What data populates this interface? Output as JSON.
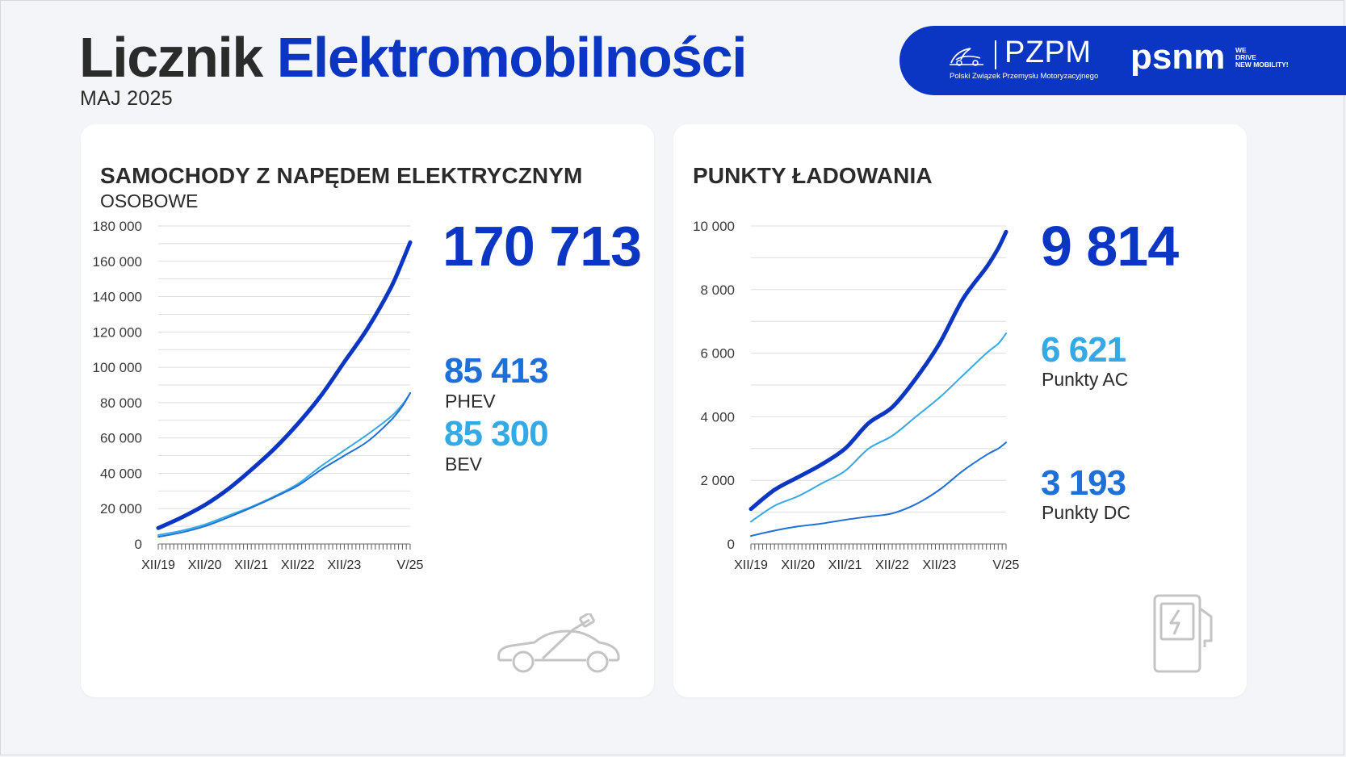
{
  "header": {
    "title_part1": "Licznik",
    "title_part2": "Elektromobilności",
    "subtitle": "MAJ 2025"
  },
  "logos": {
    "pzpm_name": "PZPM",
    "pzpm_full": "Polski Związek Przemysłu Motoryzacyjnego",
    "psnm_name": "psnm",
    "psnm_tagline_1": "WE",
    "psnm_tagline_2": "DRIVE",
    "psnm_tagline_3": "NEW MOBILITY!"
  },
  "colors": {
    "navy": "#0b36c4",
    "mid_blue": "#1e6fd9",
    "light_blue": "#35a9e6",
    "grid": "#d9d9d9"
  },
  "icons": {
    "left": "electric-car-icon",
    "right": "charging-station-icon"
  },
  "chart_data": [
    {
      "type": "line",
      "title": "SAMOCHODY Z NAPĘDEM ELEKTRYCZNYM",
      "subtitle": "OSOBOWE",
      "ylim": [
        0,
        180000
      ],
      "y_ticks": [
        "0",
        "20 000",
        "40 000",
        "60 000",
        "80 000",
        "100 000",
        "120 000",
        "140 000",
        "160 000",
        "180 000"
      ],
      "y_tick_values": [
        0,
        20000,
        40000,
        60000,
        80000,
        100000,
        120000,
        140000,
        160000,
        180000
      ],
      "grid": true,
      "x_tick_labels": [
        "XII/19",
        "XII/20",
        "XII/21",
        "XII/22",
        "XII/23",
        "V/25"
      ],
      "x_tick_months": [
        0,
        12,
        24,
        36,
        48,
        65
      ],
      "x_month_count": 65,
      "x": [
        0,
        6,
        12,
        18,
        24,
        30,
        36,
        42,
        48,
        54,
        60,
        63,
        65
      ],
      "series": [
        {
          "name": "",
          "total_label": "170 713",
          "color": "#0b36c4",
          "values": [
            9000,
            15000,
            22000,
            31000,
            42000,
            54000,
            68000,
            84000,
            103000,
            122000,
            145000,
            160000,
            170713
          ]
        },
        {
          "name": "PHEV",
          "total_label": "85 413",
          "color": "#1e6fd9",
          "values": [
            4000,
            6500,
            10000,
            15000,
            20500,
            26500,
            33000,
            42000,
            50000,
            58000,
            70000,
            78000,
            85413
          ]
        },
        {
          "name": "BEV",
          "total_label": "85 300",
          "color": "#35a9e6",
          "values": [
            5000,
            7500,
            11000,
            16000,
            21000,
            27000,
            34000,
            44000,
            53000,
            62000,
            72000,
            79000,
            85300
          ]
        }
      ]
    },
    {
      "type": "line",
      "title": "PUNKTY ŁADOWANIA",
      "ylim": [
        0,
        10000
      ],
      "y_ticks": [
        "0",
        "2 000",
        "4 000",
        "6 000",
        "8 000",
        "10 000"
      ],
      "y_tick_values": [
        0,
        2000,
        4000,
        6000,
        8000,
        10000
      ],
      "grid": true,
      "x_tick_labels": [
        "XII/19",
        "XII/20",
        "XII/21",
        "XII/22",
        "XII/23",
        "V/25"
      ],
      "x_tick_months": [
        0,
        12,
        24,
        36,
        48,
        65
      ],
      "x_month_count": 65,
      "x": [
        0,
        6,
        12,
        18,
        24,
        30,
        36,
        42,
        48,
        54,
        60,
        63,
        65
      ],
      "series": [
        {
          "name": "",
          "total_label": "9 814",
          "color": "#0b36c4",
          "values": [
            1100,
            1700,
            2100,
            2500,
            3000,
            3800,
            4300,
            5200,
            6300,
            7700,
            8700,
            9300,
            9814
          ]
        },
        {
          "name": "Punkty AC",
          "total_label": "6 621",
          "color": "#35a9e6",
          "values": [
            700,
            1200,
            1500,
            1900,
            2300,
            3000,
            3400,
            4000,
            4600,
            5300,
            6000,
            6300,
            6621
          ]
        },
        {
          "name": "Punkty DC",
          "total_label": "3 193",
          "color": "#1e6fd9",
          "values": [
            250,
            420,
            550,
            640,
            760,
            860,
            960,
            1250,
            1700,
            2300,
            2800,
            3000,
            3193
          ]
        }
      ]
    }
  ]
}
